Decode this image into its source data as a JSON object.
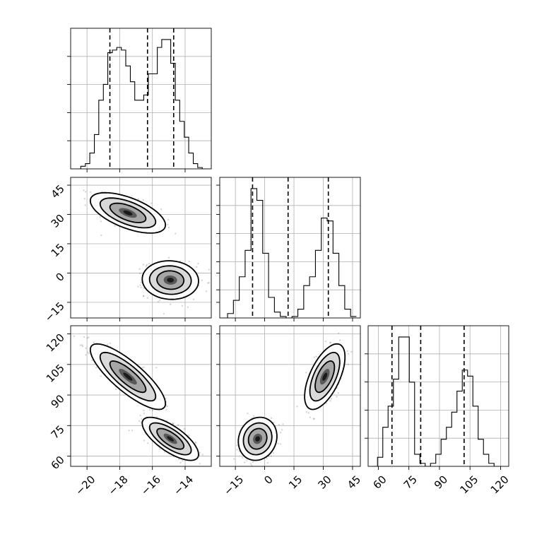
{
  "chart_data": {
    "type": "corner",
    "title": "",
    "parameters": [
      "",
      "",
      ""
    ],
    "ranges": [
      [
        -21.0,
        -12.4
      ],
      [
        -23,
        49
      ],
      [
        55,
        124
      ]
    ],
    "grid": true,
    "colors": {
      "line": "#000000",
      "grid": "#b0b0b0",
      "points": "#444444",
      "dense": "#1a1a1a"
    },
    "ticks": [
      {
        "values": [
          -20,
          -18,
          -16,
          -14
        ],
        "labels": [
          "−20",
          "−18",
          "−16",
          "−14"
        ]
      },
      {
        "values": [
          -15,
          0,
          15,
          30,
          45
        ],
        "labels": [
          "−15",
          "0",
          "15",
          "30",
          "45"
        ]
      },
      {
        "values": [
          60,
          75,
          90,
          105,
          120
        ],
        "labels": [
          "60",
          "75",
          "90",
          "105",
          "120"
        ]
      }
    ],
    "histograms": [
      {
        "parameter": 0,
        "bin_edges": [
          -20.65,
          -20.38,
          -20.1,
          -19.83,
          -19.55,
          -19.28,
          -19.0,
          -18.73,
          -18.45,
          -18.18,
          -17.9,
          -17.63,
          -17.35,
          -17.08,
          -16.8,
          -16.53,
          -16.25,
          -15.98,
          -15.7,
          -15.43,
          -15.15,
          -14.88,
          -14.6,
          -14.33,
          -14.05,
          -13.78,
          -13.5,
          -13.23,
          -12.95,
          -12.68
        ],
        "counts": [
          0,
          2,
          4,
          12,
          26,
          52,
          64,
          88,
          90,
          92,
          90,
          78,
          66,
          52,
          52,
          56,
          72,
          72,
          92,
          98,
          98,
          80,
          52,
          36,
          24,
          12,
          4,
          1,
          0
        ],
        "quantiles": [
          -18.6,
          -16.3,
          -14.7
        ]
      },
      {
        "parameter": 1,
        "bin_edges": [
          -22,
          -19,
          -16,
          -13,
          -10,
          -7,
          -4,
          -1,
          2,
          5,
          8,
          11,
          14,
          17,
          20,
          23,
          26,
          29,
          32,
          35,
          38,
          41,
          44,
          47
        ],
        "counts": [
          0,
          3,
          12,
          28,
          46,
          88,
          80,
          44,
          14,
          4,
          1,
          0,
          1,
          6,
          22,
          28,
          46,
          68,
          66,
          44,
          22,
          6,
          1
        ],
        "quantiles": [
          -6.2,
          12.0,
          32.6
        ]
      },
      {
        "parameter": 2,
        "bin_edges": [
          57,
          59.6,
          62.2,
          64.8,
          67.4,
          70,
          72.6,
          75.2,
          77.8,
          80.4,
          83,
          85.6,
          88.2,
          90.8,
          93.4,
          96,
          98.6,
          101.2,
          103.8,
          106.4,
          109,
          111.6,
          114.2,
          116.8,
          119.4
        ],
        "counts": [
          0,
          6,
          26,
          40,
          58,
          86,
          86,
          56,
          8,
          2,
          0,
          2,
          8,
          18,
          26,
          36,
          50,
          64,
          60,
          40,
          18,
          8,
          2,
          0
        ],
        "quantiles": [
          66.7,
          80.8,
          102.1
        ]
      }
    ],
    "clusters": [
      {
        "mean": [
          -17.5,
          30.8,
          99.0
        ],
        "sd": [
          1.0,
          4.5,
          7.0
        ],
        "corr": {
          "0-1": -0.6,
          "0-2": -0.82,
          "1-2": 0.6
        },
        "levels": [
          1.1,
          1.7,
          2.3
        ]
      },
      {
        "mean": [
          -14.9,
          -3.6,
          68.5
        ],
        "sd": [
          0.75,
          4.3,
          4.6
        ],
        "corr": {
          "0-1": -0.05,
          "0-2": -0.72,
          "1-2": 0.12
        },
        "levels": [
          1.1,
          1.7,
          2.3
        ]
      }
    ]
  }
}
